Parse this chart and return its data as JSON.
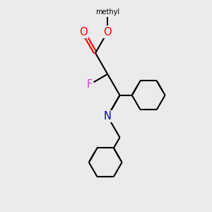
{
  "bg_color": "#ebebeb",
  "bond_color": "#000000",
  "O_color": "#ff0000",
  "N_color": "#0000cc",
  "F_color": "#cc44cc",
  "line_width": 1.5,
  "fig_size": [
    3.0,
    3.0
  ],
  "dpi": 100,
  "xlim": [
    0,
    10
  ],
  "ylim": [
    0,
    10
  ]
}
